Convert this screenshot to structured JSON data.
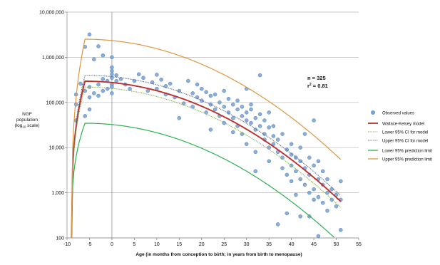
{
  "chart_data": {
    "type": "scatter",
    "xlabel": "Age (in months from conception to birth; in years from birth to menopause)",
    "ylabel_lines": [
      "NGF",
      "population",
      "(log",
      "10",
      " scale)"
    ],
    "x_ticks": [
      -10,
      -5,
      0,
      5,
      10,
      15,
      20,
      25,
      30,
      35,
      40,
      45,
      50,
      55
    ],
    "xlim": [
      -10,
      55
    ],
    "y_scale": "log10",
    "ylim": [
      100,
      10000000
    ],
    "y_ticks": [
      {
        "value": 100,
        "label": "100"
      },
      {
        "value": 1000,
        "label": "1,000"
      },
      {
        "value": 10000,
        "label": "10,000"
      },
      {
        "value": 100000,
        "label": "100,000"
      },
      {
        "value": 1000000,
        "label": "1,000,000"
      },
      {
        "value": 10000000,
        "label": "10,000,000"
      }
    ],
    "grid": "horizontal",
    "legend_position": "right",
    "annotation": {
      "n_text": "n = 325",
      "r2_prefix": "r",
      "r2_sup": "2",
      "r2_suffix": " = 0.81"
    },
    "observed": {
      "name": "Observed values",
      "color": "#7EA6D8",
      "points": [
        [
          -5,
          3200000
        ],
        [
          -6,
          1700000
        ],
        [
          -3,
          1750000
        ],
        [
          -2,
          1100000
        ],
        [
          -4,
          900000
        ],
        [
          0,
          1000000
        ],
        [
          -8,
          40000
        ],
        [
          -8,
          90000
        ],
        [
          -8,
          150000
        ],
        [
          -7,
          260000
        ],
        [
          -6,
          50000
        ],
        [
          -6,
          180000
        ],
        [
          -5,
          70000
        ],
        [
          -5,
          130000
        ],
        [
          -5,
          220000
        ],
        [
          -4,
          160000
        ],
        [
          -3,
          250000
        ],
        [
          -3,
          140000
        ],
        [
          -2,
          330000
        ],
        [
          -2,
          180000
        ],
        [
          -1,
          200000
        ],
        [
          -1,
          300000
        ],
        [
          0,
          420000
        ],
        [
          0,
          350000
        ],
        [
          0,
          500000
        ],
        [
          0,
          600000
        ],
        [
          0,
          250000
        ],
        [
          0,
          160000
        ],
        [
          0,
          220000
        ],
        [
          1,
          300000
        ],
        [
          1,
          400000
        ],
        [
          2,
          330000
        ],
        [
          3,
          250000
        ],
        [
          4,
          200000
        ],
        [
          5,
          300000
        ],
        [
          6,
          420000
        ],
        [
          7,
          350000
        ],
        [
          8,
          180000
        ],
        [
          9,
          280000
        ],
        [
          10,
          200000
        ],
        [
          10,
          410000
        ],
        [
          11,
          320000
        ],
        [
          12,
          150000
        ],
        [
          12,
          230000
        ],
        [
          13,
          260000
        ],
        [
          14,
          130000
        ],
        [
          15,
          180000
        ],
        [
          15,
          45000
        ],
        [
          16,
          95000
        ],
        [
          17,
          300000
        ],
        [
          18,
          160000
        ],
        [
          18,
          80000
        ],
        [
          19,
          250000
        ],
        [
          19,
          130000
        ],
        [
          20,
          200000
        ],
        [
          20,
          110000
        ],
        [
          21,
          170000
        ],
        [
          21,
          60000
        ],
        [
          22,
          90000
        ],
        [
          22,
          140000
        ],
        [
          22,
          25000
        ],
        [
          23,
          150000
        ],
        [
          23,
          70000
        ],
        [
          24,
          100000
        ],
        [
          24,
          50000
        ],
        [
          25,
          180000
        ],
        [
          25,
          80000
        ],
        [
          25,
          35000
        ],
        [
          26,
          60000
        ],
        [
          26,
          120000
        ],
        [
          27,
          90000
        ],
        [
          27,
          45000
        ],
        [
          27,
          22000
        ],
        [
          28,
          70000
        ],
        [
          28,
          30000
        ],
        [
          28,
          110000
        ],
        [
          29,
          50000
        ],
        [
          29,
          80000
        ],
        [
          29,
          20000
        ],
        [
          30,
          200000
        ],
        [
          30,
          40000
        ],
        [
          30,
          60000
        ],
        [
          30,
          12000
        ],
        [
          31,
          35000
        ],
        [
          31,
          70000
        ],
        [
          31,
          90000
        ],
        [
          32,
          25000
        ],
        [
          32,
          8000
        ],
        [
          32,
          45000
        ],
        [
          32,
          3000
        ],
        [
          33,
          400000
        ],
        [
          33,
          30000
        ],
        [
          33,
          55000
        ],
        [
          34,
          15000
        ],
        [
          34,
          40000
        ],
        [
          34,
          20000
        ],
        [
          35,
          10000
        ],
        [
          35,
          28000
        ],
        [
          35,
          60000
        ],
        [
          35,
          5000
        ],
        [
          36,
          12000
        ],
        [
          36,
          30000
        ],
        [
          36,
          18000
        ],
        [
          37,
          8000
        ],
        [
          37,
          15000
        ],
        [
          37,
          200
        ],
        [
          38,
          6000
        ],
        [
          38,
          20000
        ],
        [
          38,
          3500
        ],
        [
          39,
          2500
        ],
        [
          39,
          9000
        ],
        [
          39,
          350
        ],
        [
          40,
          7000
        ],
        [
          40,
          4000
        ],
        [
          40,
          12000
        ],
        [
          40,
          1800
        ],
        [
          41,
          3000
        ],
        [
          41,
          6000
        ],
        [
          41,
          900
        ],
        [
          42,
          5000
        ],
        [
          42,
          2000
        ],
        [
          42,
          10000
        ],
        [
          42,
          300
        ],
        [
          43,
          1500
        ],
        [
          43,
          3500
        ],
        [
          43,
          20000
        ],
        [
          44,
          1000
        ],
        [
          44,
          2500
        ],
        [
          44,
          6000
        ],
        [
          44,
          300
        ],
        [
          45,
          4000
        ],
        [
          45,
          1200
        ],
        [
          45,
          40000
        ],
        [
          45,
          700
        ],
        [
          46,
          2000
        ],
        [
          46,
          800
        ],
        [
          46,
          5000
        ],
        [
          46,
          110
        ],
        [
          47,
          1500
        ],
        [
          47,
          600
        ],
        [
          47,
          3000
        ],
        [
          48,
          1000
        ],
        [
          48,
          400
        ],
        [
          48,
          2000
        ],
        [
          49,
          700
        ],
        [
          49,
          1200
        ],
        [
          50,
          900
        ],
        [
          50,
          500
        ],
        [
          51,
          700
        ],
        [
          51,
          1800
        ],
        [
          51,
          150
        ]
      ]
    },
    "model": {
      "log10_peak": 5.47,
      "peak_x": -6.0,
      "log10_floor": 2.0,
      "x_start": -9.0,
      "k": 0.00082
    },
    "series": [
      {
        "name": "Wallace-Kelsey model",
        "color": "#C0302B",
        "style": "solid",
        "offset": 0.0
      },
      {
        "name": "Lower 95% CI for model",
        "color": "#86B04B",
        "style": "dotted",
        "offset": -0.13
      },
      {
        "name": "Upper 95% CI for model",
        "color": "#5B6A8C",
        "style": "dotted",
        "offset": 0.13
      },
      {
        "name": "Lower 95% prediction limit",
        "color": "#2BB24C",
        "style": "solid",
        "offset": -0.93
      },
      {
        "name": "Upper 95% prediction limit",
        "color": "#E0963A",
        "style": "solid",
        "offset": 0.93
      }
    ]
  }
}
